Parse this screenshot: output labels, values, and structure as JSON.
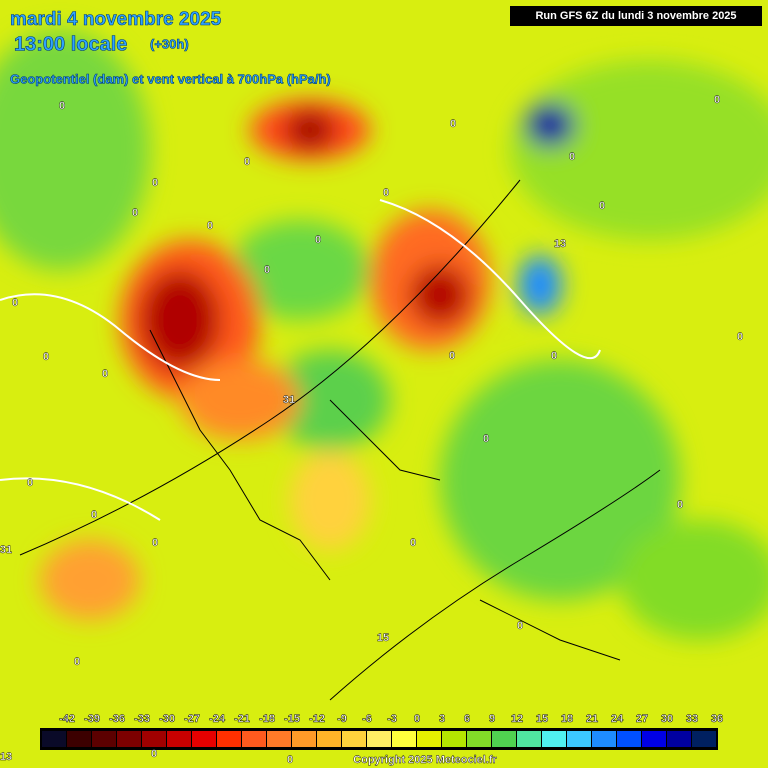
{
  "header": {
    "date": "mardi 4 novembre 2025",
    "time": "13:00 locale",
    "lead": "(+30h)",
    "field": "Geopotentiel (dam) et vent vertical à 700hPa (hPa/h)",
    "run": "Run GFS 6Z du lundi 3 novembre 2025"
  },
  "contour_labels": [
    "0",
    "0",
    "0",
    "0",
    "0",
    "0",
    "0",
    "0",
    "0",
    "0",
    "0",
    "0",
    "0",
    "0",
    "0",
    "0",
    "0",
    "0",
    "0",
    "0",
    "0",
    "0",
    "0",
    "0",
    "0",
    "0",
    "0",
    "0",
    "31",
    "31",
    "15",
    "13",
    "13"
  ],
  "legend": {
    "ticks": [
      -42,
      -39,
      -36,
      -33,
      -30,
      -27,
      -24,
      -21,
      -18,
      -15,
      -12,
      -9,
      -6,
      -3,
      0,
      3,
      6,
      9,
      12,
      15,
      18,
      21,
      24,
      27,
      30,
      33,
      36
    ],
    "colors": [
      "#0a0a28",
      "#3c0000",
      "#5c0000",
      "#7c0000",
      "#a00000",
      "#c80000",
      "#e60000",
      "#ff3000",
      "#ff5a1e",
      "#ff7a28",
      "#ff9a28",
      "#ffb428",
      "#ffd23c",
      "#ffee64",
      "#ffff3c",
      "#e6f000",
      "#b4e600",
      "#82dc28",
      "#50d250",
      "#50e6a0",
      "#50f0f0",
      "#3cc8ff",
      "#1e8cff",
      "#0050ff",
      "#0000e6",
      "#0000a0",
      "#002060"
    ]
  },
  "footer": {
    "copyright": "Copyright 2025 Meteociel.fr"
  }
}
